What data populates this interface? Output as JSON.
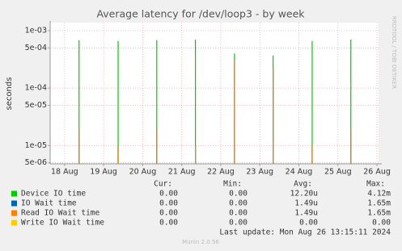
{
  "chart_data": {
    "type": "spike",
    "title": "Average latency for /dev/loop3 - by week",
    "y_label": "seconds",
    "side_text": "RRDTOOL / TOBI OETIKER",
    "log_y": true,
    "grid": true,
    "ylim": [
      4.8e-06,
      0.00138
    ],
    "yticks": [
      {
        "value": 0.001,
        "label": "1e-03"
      },
      {
        "value": 0.0005,
        "label": "5e-04"
      },
      {
        "value": 0.0001,
        "label": "1e-04"
      },
      {
        "value": 5e-05,
        "label": "5e-05"
      },
      {
        "value": 1e-05,
        "label": "1e-05"
      },
      {
        "value": 5e-06,
        "label": "5e-06"
      }
    ],
    "xlim": [
      17.63,
      26.04
    ],
    "xticks": [
      {
        "value": 18,
        "label": "18 Aug"
      },
      {
        "value": 19,
        "label": "19 Aug"
      },
      {
        "value": 20,
        "label": "20 Aug"
      },
      {
        "value": 21,
        "label": "21 Aug"
      },
      {
        "value": 22,
        "label": "22 Aug"
      },
      {
        "value": 23,
        "label": "23 Aug"
      },
      {
        "value": 24,
        "label": "24 Aug"
      },
      {
        "value": 25,
        "label": "25 Aug"
      },
      {
        "value": 26,
        "label": "26 Aug"
      }
    ],
    "x": [
      18.37,
      19.37,
      20.36,
      21.35,
      22.35,
      23.34,
      24.34,
      25.33
    ],
    "stat_headers": [
      "Cur:",
      "Min:",
      "Avg:",
      "Max:"
    ],
    "series": [
      {
        "name": "Device IO time",
        "color": "#00cc00",
        "values": [
          0.00068,
          0.00066,
          0.00068,
          0.0007,
          0.0004,
          0.00037,
          0.00066,
          0.0007
        ],
        "stats": [
          "0.00",
          "0.00",
          "12.20u",
          "4.12m"
        ]
      },
      {
        "name": "IO Wait time",
        "color": "#0066b3",
        "values": [
          1.9e-05,
          9.5e-06,
          1.9e-05,
          1e-05,
          0.0003,
          0.00022,
          1e-05,
          1.9e-05
        ],
        "stats": [
          "0.00",
          "0.00",
          "1.49u",
          "1.65m"
        ]
      },
      {
        "name": "Read IO Wait time",
        "color": "#ff8000",
        "values": [
          1.9e-05,
          9.5e-06,
          1.9e-05,
          1e-05,
          0.0003,
          0.00022,
          1e-05,
          1.9e-05
        ],
        "stats": [
          "0.00",
          "0.00",
          "1.49u",
          "1.65m"
        ]
      },
      {
        "name": "Write IO Wait time",
        "color": "#ffcc00",
        "values": [
          null,
          null,
          null,
          null,
          null,
          null,
          null,
          null
        ],
        "stats": [
          "0.00",
          "0.00",
          "0.00",
          "0.00"
        ]
      }
    ],
    "last_update": "Last update: Mon Aug 26 13:15:11 2024",
    "footer": "Munin 2.0.56"
  }
}
